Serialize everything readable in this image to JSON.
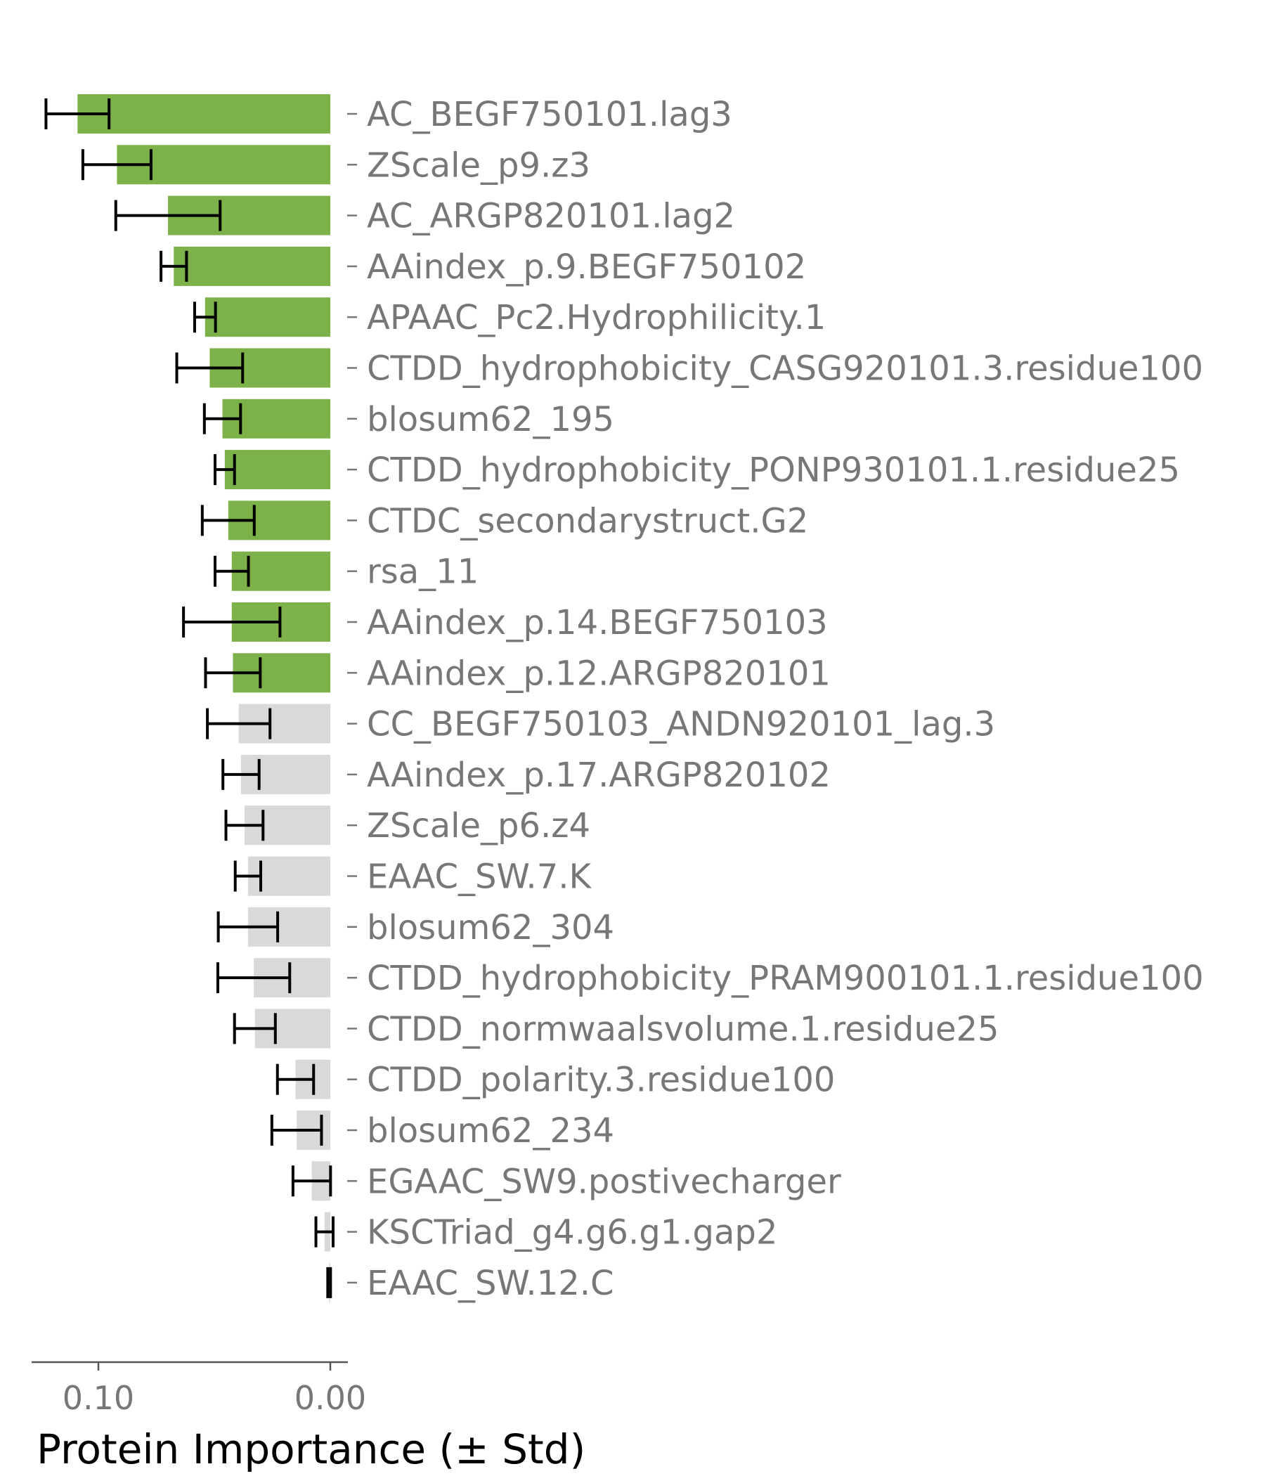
{
  "chart_data": {
    "type": "bar",
    "orientation": "horizontal",
    "x_axis_reversed": true,
    "xlabel": "Protein Importance (± Std)",
    "xlim": [
      0.129,
      -0.008
    ],
    "xticks": [
      0.1,
      0.0
    ],
    "xtick_labels": [
      "0.10",
      "0.00"
    ],
    "highlight_color": "#7db24a",
    "other_color": "#d9d9d9",
    "errorbar_color": "#000000",
    "bars": [
      {
        "label": "AC_BEGF750101.lag3",
        "value": 0.109,
        "std": 0.0136,
        "highlighted": true
      },
      {
        "label": "ZScale_p9.z3",
        "value": 0.092,
        "std": 0.0147,
        "highlighted": true
      },
      {
        "label": "AC_ARGP820101.lag2",
        "value": 0.07,
        "std": 0.0225,
        "highlighted": true
      },
      {
        "label": "AAindex_p.9.BEGF750102",
        "value": 0.0675,
        "std": 0.0055,
        "highlighted": true
      },
      {
        "label": "APAAC_Pc2.Hydrophilicity.1",
        "value": 0.054,
        "std": 0.0045,
        "highlighted": true
      },
      {
        "label": "CTDD_hydrophobicity_CASG920101.3.residue100",
        "value": 0.052,
        "std": 0.0142,
        "highlighted": true
      },
      {
        "label": "blosum62_195",
        "value": 0.0465,
        "std": 0.0078,
        "highlighted": true
      },
      {
        "label": "CTDD_hydrophobicity_PONP930101.1.residue25",
        "value": 0.0455,
        "std": 0.0042,
        "highlighted": true
      },
      {
        "label": "CTDC_secondarystruct.G2",
        "value": 0.044,
        "std": 0.0112,
        "highlighted": true
      },
      {
        "label": "rsa_11",
        "value": 0.0425,
        "std": 0.0072,
        "highlighted": true
      },
      {
        "label": "AAindex_p.14.BEGF750103",
        "value": 0.0425,
        "std": 0.0208,
        "highlighted": true
      },
      {
        "label": "AAindex_p.12.ARGP820101",
        "value": 0.042,
        "std": 0.0118,
        "highlighted": true
      },
      {
        "label": "CC_BEGF750103_ANDN920101_lag.3",
        "value": 0.0395,
        "std": 0.0135,
        "highlighted": false
      },
      {
        "label": "AAindex_p.17.ARGP820102",
        "value": 0.0385,
        "std": 0.0078,
        "highlighted": false
      },
      {
        "label": "ZScale_p6.z4",
        "value": 0.037,
        "std": 0.008,
        "highlighted": false
      },
      {
        "label": "EAAC_SW.7.K",
        "value": 0.0355,
        "std": 0.0055,
        "highlighted": false
      },
      {
        "label": "blosum62_304",
        "value": 0.0355,
        "std": 0.0128,
        "highlighted": false
      },
      {
        "label": "CTDD_hydrophobicity_PRAM900101.1.residue100",
        "value": 0.033,
        "std": 0.0155,
        "highlighted": false
      },
      {
        "label": "CTDD_normwaalsvolume.1.residue25",
        "value": 0.0325,
        "std": 0.0088,
        "highlighted": false
      },
      {
        "label": "CTDD_polarity.3.residue100",
        "value": 0.015,
        "std": 0.0078,
        "highlighted": false
      },
      {
        "label": "blosum62_234",
        "value": 0.0145,
        "std": 0.0107,
        "highlighted": false
      },
      {
        "label": "EGAAC_SW9.postivecharger",
        "value": 0.008,
        "std": 0.0081,
        "highlighted": false
      },
      {
        "label": "KSCTriad_g4.g6.g1.gap2",
        "value": 0.0025,
        "std": 0.0037,
        "highlighted": false
      },
      {
        "label": "EAAC_SW.12.C",
        "value": 0.0005,
        "std": 0.0006,
        "highlighted": false
      }
    ]
  }
}
